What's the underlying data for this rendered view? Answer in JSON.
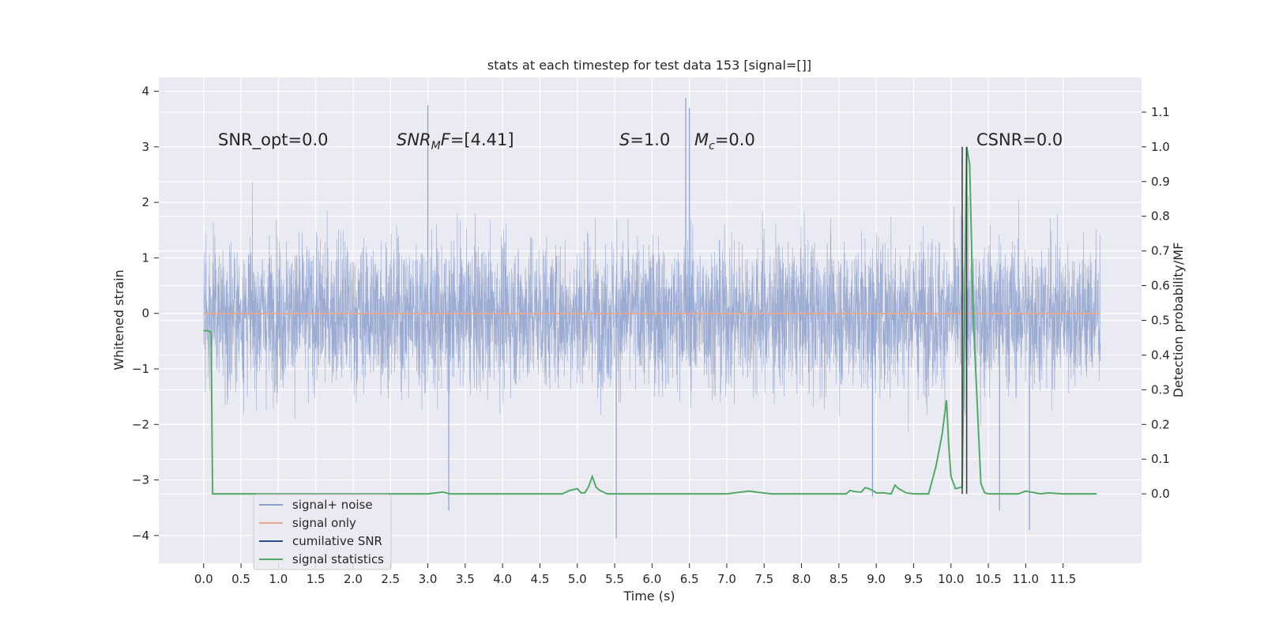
{
  "chart_data": {
    "type": "line",
    "title": "stats at each timestep for test data 153 [signal=[]]",
    "xlabel": "Time (s)",
    "ylabel_left": "Whitened strain",
    "ylabel_right": "Detection probability/MF",
    "xlim": [
      -0.6,
      12.55
    ],
    "ylim_left": [
      -4.5,
      4.25
    ],
    "ylim_right": [
      -0.2,
      1.2
    ],
    "grid": true,
    "x_ticks": [
      "0.0",
      "0.5",
      "1.0",
      "1.5",
      "2.0",
      "2.5",
      "3.0",
      "3.5",
      "4.0",
      "4.5",
      "5.0",
      "5.5",
      "6.0",
      "6.5",
      "7.0",
      "7.5",
      "8.0",
      "8.5",
      "9.0",
      "9.5",
      "10.0",
      "10.5",
      "11.0",
      "11.5"
    ],
    "y_left_ticks": [
      "4",
      "3",
      "2",
      "1",
      "0",
      "−1",
      "−2",
      "−3",
      "−4"
    ],
    "y_right_ticks": [
      "1.1",
      "1.0",
      "0.9",
      "0.8",
      "0.7",
      "0.6",
      "0.5",
      "0.4",
      "0.3",
      "0.2",
      "0.1",
      "0.0"
    ],
    "annotations": {
      "snr_opt": "SNR_opt=0.0",
      "snr_mf_main": "SNR",
      "snr_mf_sub": "M",
      "snr_mf_rest": "F",
      "snr_mf_value": "=[4.41]",
      "s_var": "S",
      "s_value": "=1.0",
      "mc_var": "M",
      "mc_sub": "c",
      "mc_value": "=0.0",
      "csnr": "CSNR=0.0"
    },
    "legend": {
      "position": "lower-left",
      "entries": [
        "signal+ noise",
        "signal only",
        "cumilative SNR",
        "signal statistics"
      ]
    },
    "series": [
      {
        "name": "signal+ noise",
        "axis": "left",
        "color": "#8da0cb",
        "style": "dense noisy strain, roughly within ±2.3, extremes to about +3.9 and -4.1",
        "x_range": [
          0.0,
          12.0
        ],
        "extremes": [
          {
            "x": 3.0,
            "y": 3.75
          },
          {
            "x": 6.45,
            "y": 3.88
          },
          {
            "x": 6.5,
            "y": 3.7
          },
          {
            "x": 5.52,
            "y": -4.05
          },
          {
            "x": 11.05,
            "y": -3.9
          },
          {
            "x": 3.28,
            "y": -3.55
          },
          {
            "x": 10.65,
            "y": -3.55
          },
          {
            "x": 8.95,
            "y": -3.3
          }
        ]
      },
      {
        "name": "signal only",
        "axis": "left",
        "color": "#e8a98e",
        "x": [
          0.0,
          12.0
        ],
        "y": [
          0.0,
          0.0
        ]
      },
      {
        "name": "cumilative SNR",
        "axis": "right",
        "color": "#2f4f8f",
        "x": [],
        "y": []
      },
      {
        "name": "signal statistics",
        "axis": "right",
        "color": "#55a868",
        "x": [
          0.0,
          0.06,
          0.1,
          0.12,
          0.5,
          1.0,
          2.0,
          3.0,
          3.2,
          3.3,
          4.0,
          4.6,
          4.8,
          4.9,
          5.0,
          5.05,
          5.1,
          5.15,
          5.2,
          5.25,
          5.3,
          5.4,
          5.5,
          6.0,
          6.5,
          7.0,
          7.3,
          7.4,
          7.6,
          8.0,
          8.6,
          8.65,
          8.7,
          8.8,
          8.85,
          8.9,
          8.95,
          9.0,
          9.1,
          9.2,
          9.25,
          9.3,
          9.4,
          9.5,
          9.7,
          9.8,
          9.88,
          9.94,
          9.97,
          10.0,
          10.06,
          10.15,
          10.21,
          10.25,
          10.3,
          10.4,
          10.45,
          10.5,
          10.6,
          10.9,
          11.0,
          11.2,
          11.3,
          11.5,
          11.95
        ],
        "y": [
          0.47,
          0.47,
          0.465,
          0.0,
          0.0,
          0.0,
          0.0,
          0.0,
          0.005,
          0.0,
          0.0,
          0.0,
          0.0,
          0.01,
          0.015,
          0.003,
          0.003,
          0.02,
          0.05,
          0.02,
          0.01,
          0.0,
          0.0,
          0.0,
          0.0,
          0.0,
          0.008,
          0.005,
          0.0,
          0.0,
          0.0,
          0.01,
          0.007,
          0.005,
          0.018,
          0.015,
          0.01,
          0.003,
          0.003,
          0.0,
          0.025,
          0.015,
          0.003,
          0.0,
          0.0,
          0.08,
          0.17,
          0.27,
          0.14,
          0.05,
          0.015,
          0.02,
          1.0,
          0.95,
          0.5,
          0.03,
          0.003,
          0.0,
          0.0,
          0.0,
          0.008,
          0.0,
          0.003,
          0.0,
          0.0
        ]
      }
    ],
    "vlines": [
      10.15,
      10.21
    ]
  }
}
